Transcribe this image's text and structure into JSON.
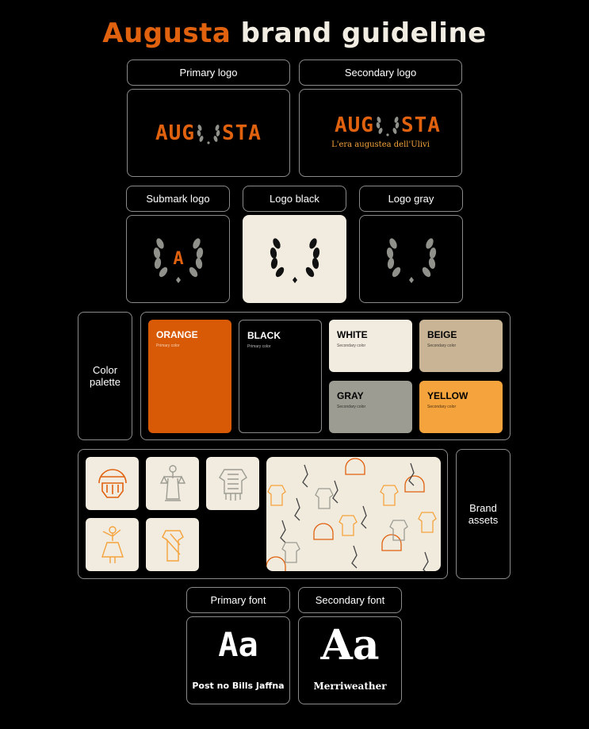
{
  "title": {
    "brand": "Augusta",
    "rest": "brand guideline"
  },
  "logos": {
    "primary_label": "Primary logo",
    "secondary_label": "Secondary logo",
    "wordmark_left": "AUG",
    "wordmark_right": "STA",
    "tagline": "L'era augustea dell'Ulivi",
    "submark_label": "Submark logo",
    "submark_letter": "A",
    "black_label": "Logo black",
    "gray_label": "Logo gray"
  },
  "palette": {
    "label": "Color palette",
    "colors": [
      {
        "name": "ORANGE",
        "role": "Primary color",
        "hex": "#d95a06"
      },
      {
        "name": "BLACK",
        "role": "Primary color",
        "hex": "#000000"
      },
      {
        "name": "WHITE",
        "role": "Secondary color",
        "hex": "#f2ece0"
      },
      {
        "name": "BEIGE",
        "role": "Secondary color",
        "hex": "#c9b595"
      },
      {
        "name": "GRAY",
        "role": "Secondary color",
        "hex": "#9c9c92"
      },
      {
        "name": "YELLOW",
        "role": "Secondary color",
        "hex": "#f5a33c"
      }
    ]
  },
  "assets": {
    "label": "Brand assets",
    "tiles": [
      "gladiator-helmet-icon",
      "justice-statue-icon",
      "armor-icon",
      "dancer-statue-icon",
      "toga-icon"
    ]
  },
  "fonts": {
    "primary_label": "Primary font",
    "secondary_label": "Secondary font",
    "sample": "Aa",
    "primary_name": "Post no Bills Jaffna",
    "secondary_name": "Merriweather"
  },
  "colors": {
    "accent": "#e0610e",
    "cream": "#f2ece0",
    "border": "#8a8a8a",
    "laurel_gray": "#8f918a"
  }
}
